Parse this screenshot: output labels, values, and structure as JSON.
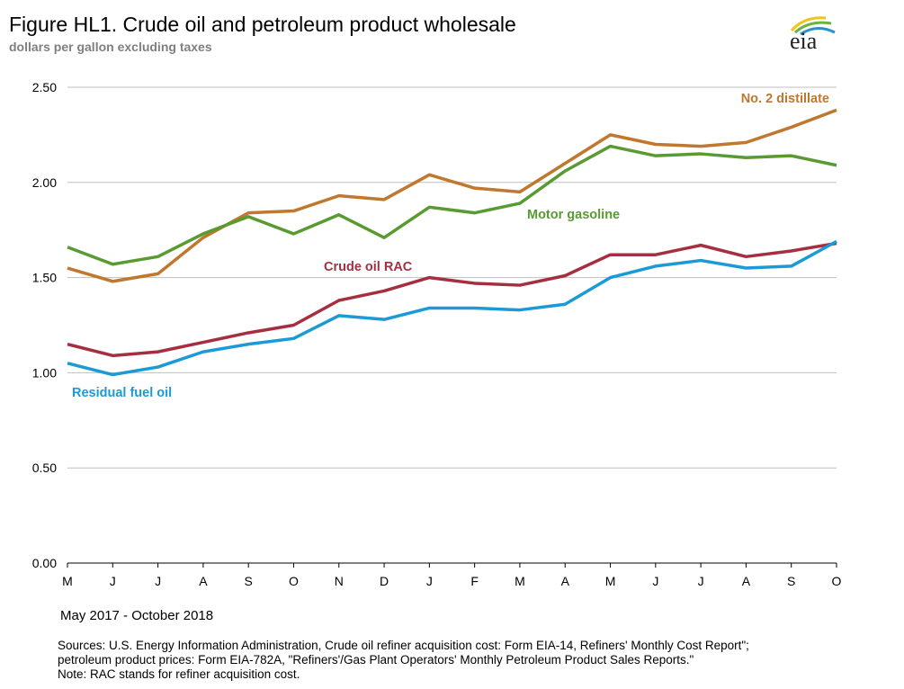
{
  "title": "Figure HL1.  Crude oil and petroleum product wholesale",
  "subtitle": "dollars per gallon excluding taxes",
  "date_range": "May 2017 - October 2018",
  "sources": [
    "Sources:  U.S. Energy Information Administration, Crude oil refiner acquisition cost:  Form EIA-14,  Refiners' Monthly  Cost Report\";",
    "petroleum product prices:  Form EIA-782A,  \"Refiners'/Gas Plant Operators' Monthly  Petroleum Product Sales Reports.\"",
    "Note:  RAC stands for refiner acquisition cost."
  ],
  "logo": "eia",
  "chart_data": {
    "type": "line",
    "title": "Figure HL1.  Crude oil and petroleum product wholesale",
    "ylabel": "dollars per gallon excluding taxes",
    "xlabel": "May 2017 - October 2018",
    "ylim": [
      0,
      2.5
    ],
    "yticks": [
      "0.00",
      "0.50",
      "1.00",
      "1.50",
      "2.00",
      "2.50"
    ],
    "grid": true,
    "legend": "inline labels",
    "categories": [
      "M",
      "J",
      "J",
      "A",
      "S",
      "O",
      "N",
      "D",
      "J",
      "F",
      "M",
      "A",
      "M",
      "J",
      "J",
      "A",
      "S",
      "O"
    ],
    "series": [
      {
        "name": "No. 2 distillate",
        "color": "#c0772e",
        "values": [
          1.55,
          1.48,
          1.52,
          1.71,
          1.84,
          1.85,
          1.93,
          1.91,
          2.04,
          1.97,
          1.95,
          2.1,
          2.25,
          2.2,
          2.19,
          2.21,
          2.29,
          2.38
        ]
      },
      {
        "name": "Motor gasoline",
        "color": "#5a9a32",
        "values": [
          1.66,
          1.57,
          1.61,
          1.73,
          1.82,
          1.73,
          1.83,
          1.71,
          1.87,
          1.84,
          1.89,
          2.06,
          2.19,
          2.14,
          2.15,
          2.13,
          2.14,
          2.09
        ]
      },
      {
        "name": "Crude oil RAC",
        "color": "#a52f3f",
        "values": [
          1.15,
          1.09,
          1.11,
          1.16,
          1.21,
          1.25,
          1.38,
          1.43,
          1.5,
          1.47,
          1.46,
          1.51,
          1.62,
          1.62,
          1.67,
          1.61,
          1.64,
          1.68
        ]
      },
      {
        "name": "Residual  fuel  oil",
        "color": "#1a9ad7",
        "values": [
          1.05,
          0.99,
          1.03,
          1.11,
          1.15,
          1.18,
          1.3,
          1.28,
          1.34,
          1.34,
          1.33,
          1.36,
          1.5,
          1.56,
          1.59,
          1.55,
          1.56,
          1.69
        ]
      }
    ]
  }
}
